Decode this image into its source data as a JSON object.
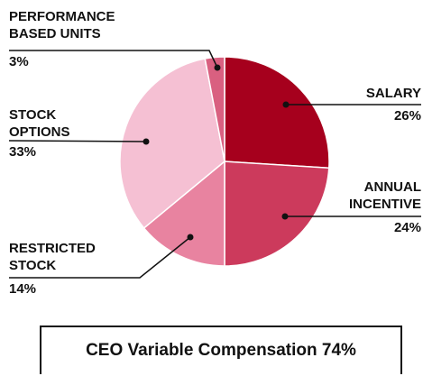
{
  "chart_data": {
    "type": "pie",
    "title": "CEO Variable Compensation 74%",
    "categories": [
      "SALARY",
      "ANNUAL INCENTIVE",
      "RESTRICTED STOCK",
      "STOCK OPTIONS",
      "PERFORMANCE BASED UNITS"
    ],
    "values": [
      26,
      24,
      14,
      33,
      3
    ],
    "value_labels": [
      "26%",
      "24%",
      "14%",
      "33%",
      "3%"
    ],
    "colors": [
      "#a6001d",
      "#cc3a5c",
      "#e883a0",
      "#f5c0d3",
      "#d96080"
    ]
  }
}
